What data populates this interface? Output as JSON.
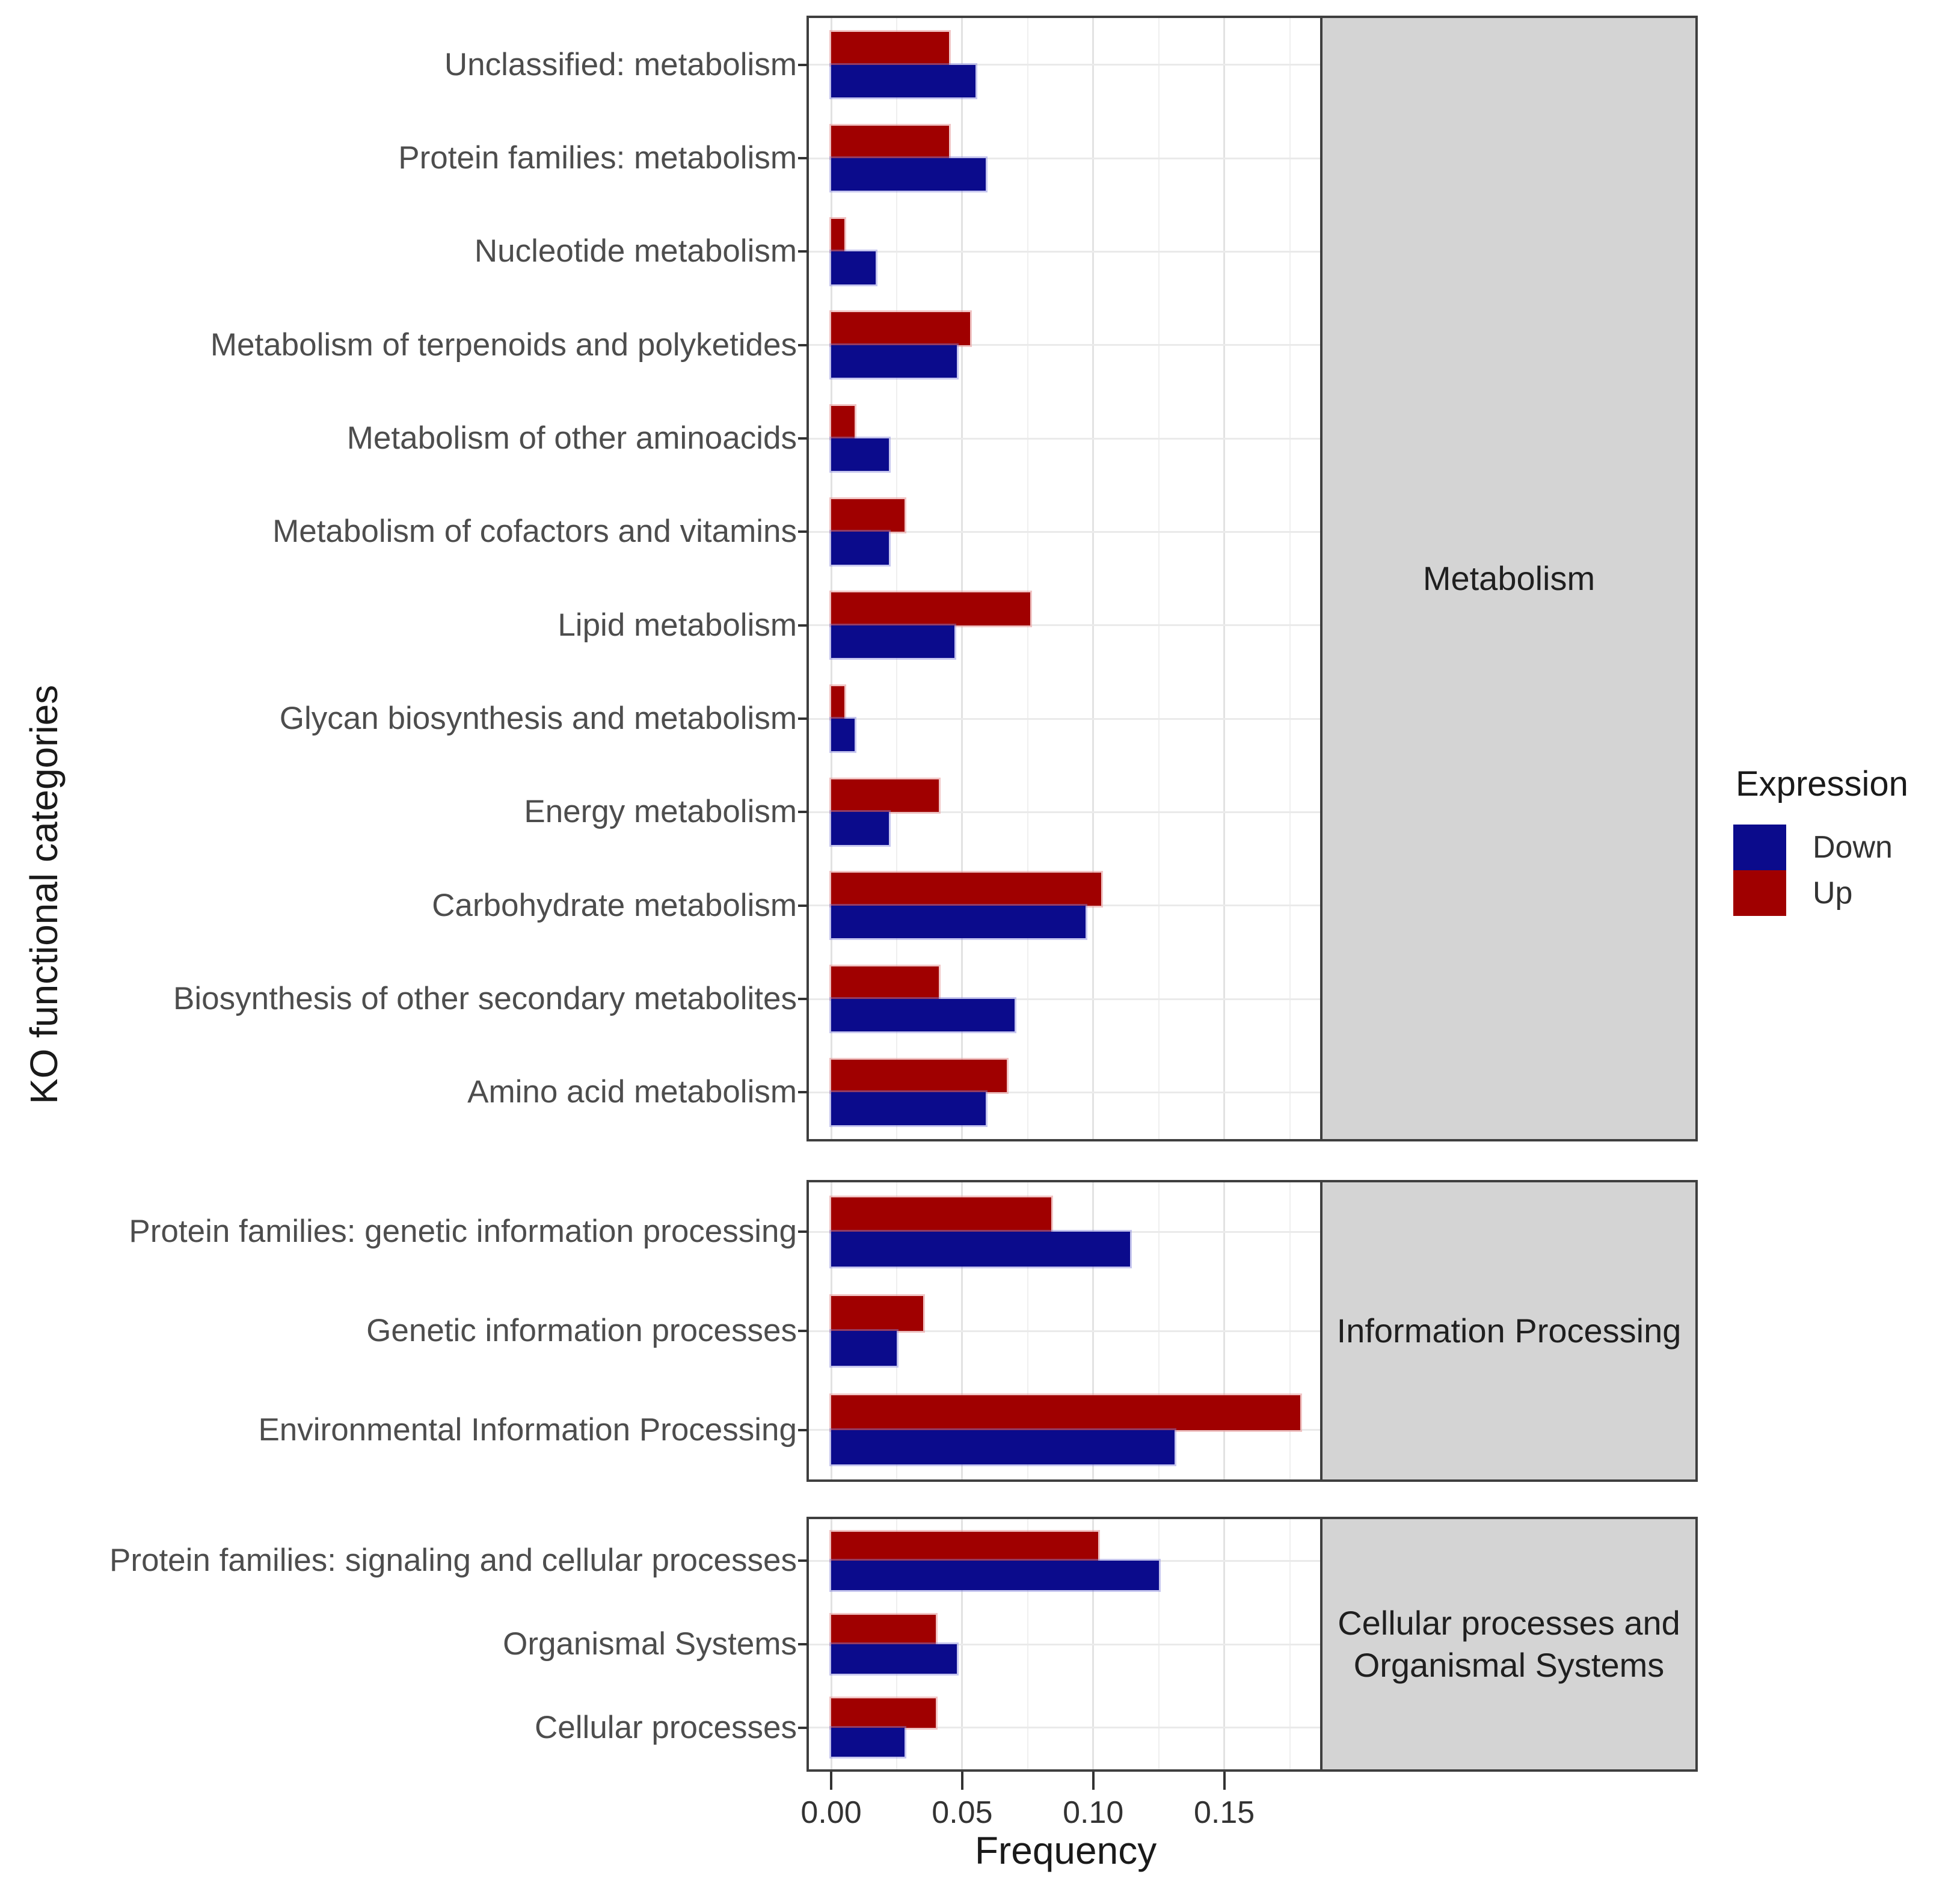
{
  "y_axis_title": "KO functional categories",
  "x_axis_title": "Frequency",
  "x_tick_labels": [
    "0.00",
    "0.05",
    "0.10",
    "0.15"
  ],
  "legend": {
    "title": "Expression",
    "items": [
      {
        "label": "Down",
        "key": "down"
      },
      {
        "label": "Up",
        "key": "up"
      }
    ]
  },
  "colors": {
    "down": "#0B0B8C",
    "up": "#A00000",
    "strip_bg": "#D4D4D4",
    "panel_border": "#3F3F3F",
    "grid_major": "#E2E2E2",
    "grid_minor": "#EFEFEF",
    "axis_text": "#4D4D4D",
    "tick_text": "#333333"
  },
  "chart_data": {
    "type": "bar",
    "orientation": "horizontal",
    "title": "",
    "xlabel": "Frequency",
    "ylabel": "KO functional categories",
    "x_domain": [
      -0.0085,
      0.1875
    ],
    "x_major_ticks": [
      0,
      0.05,
      0.1,
      0.15
    ],
    "x_minor_step": 0.025,
    "grid": true,
    "legend_position": "right",
    "series_names": [
      "Down",
      "Up"
    ],
    "facets": [
      {
        "strip": [
          "Metabolism"
        ],
        "rows": [
          {
            "category": "Unclassified: metabolism",
            "up": 0.045,
            "down": 0.055
          },
          {
            "category": "Protein families: metabolism",
            "up": 0.045,
            "down": 0.059
          },
          {
            "category": "Nucleotide metabolism",
            "up": 0.005,
            "down": 0.017
          },
          {
            "category": "Metabolism of terpenoids and polyketides",
            "up": 0.053,
            "down": 0.048
          },
          {
            "category": "Metabolism of other aminoacids",
            "up": 0.009,
            "down": 0.022
          },
          {
            "category": "Metabolism of cofactors and vitamins",
            "up": 0.028,
            "down": 0.022
          },
          {
            "category": "Lipid metabolism",
            "up": 0.076,
            "down": 0.047
          },
          {
            "category": "Glycan biosynthesis and metabolism",
            "up": 0.005,
            "down": 0.009
          },
          {
            "category": "Energy metabolism",
            "up": 0.041,
            "down": 0.022
          },
          {
            "category": "Carbohydrate metabolism",
            "up": 0.103,
            "down": 0.097
          },
          {
            "category": "Biosynthesis of other secondary metabolites",
            "up": 0.041,
            "down": 0.07
          },
          {
            "category": "Amino acid metabolism",
            "up": 0.067,
            "down": 0.059
          }
        ]
      },
      {
        "strip": [
          "Information Processing"
        ],
        "rows": [
          {
            "category": "Protein families: genetic information processing",
            "up": 0.084,
            "down": 0.114
          },
          {
            "category": "Genetic information processes",
            "up": 0.035,
            "down": 0.025
          },
          {
            "category": "Environmental Information Processing",
            "up": 0.179,
            "down": 0.131
          }
        ]
      },
      {
        "strip": [
          "Cellular processes and",
          "Organismal Systems"
        ],
        "rows": [
          {
            "category": "Protein families: signaling and cellular processes",
            "up": 0.102,
            "down": 0.125
          },
          {
            "category": "Organismal Systems",
            "up": 0.04,
            "down": 0.048
          },
          {
            "category": "Cellular processes",
            "up": 0.04,
            "down": 0.028
          }
        ]
      }
    ]
  }
}
